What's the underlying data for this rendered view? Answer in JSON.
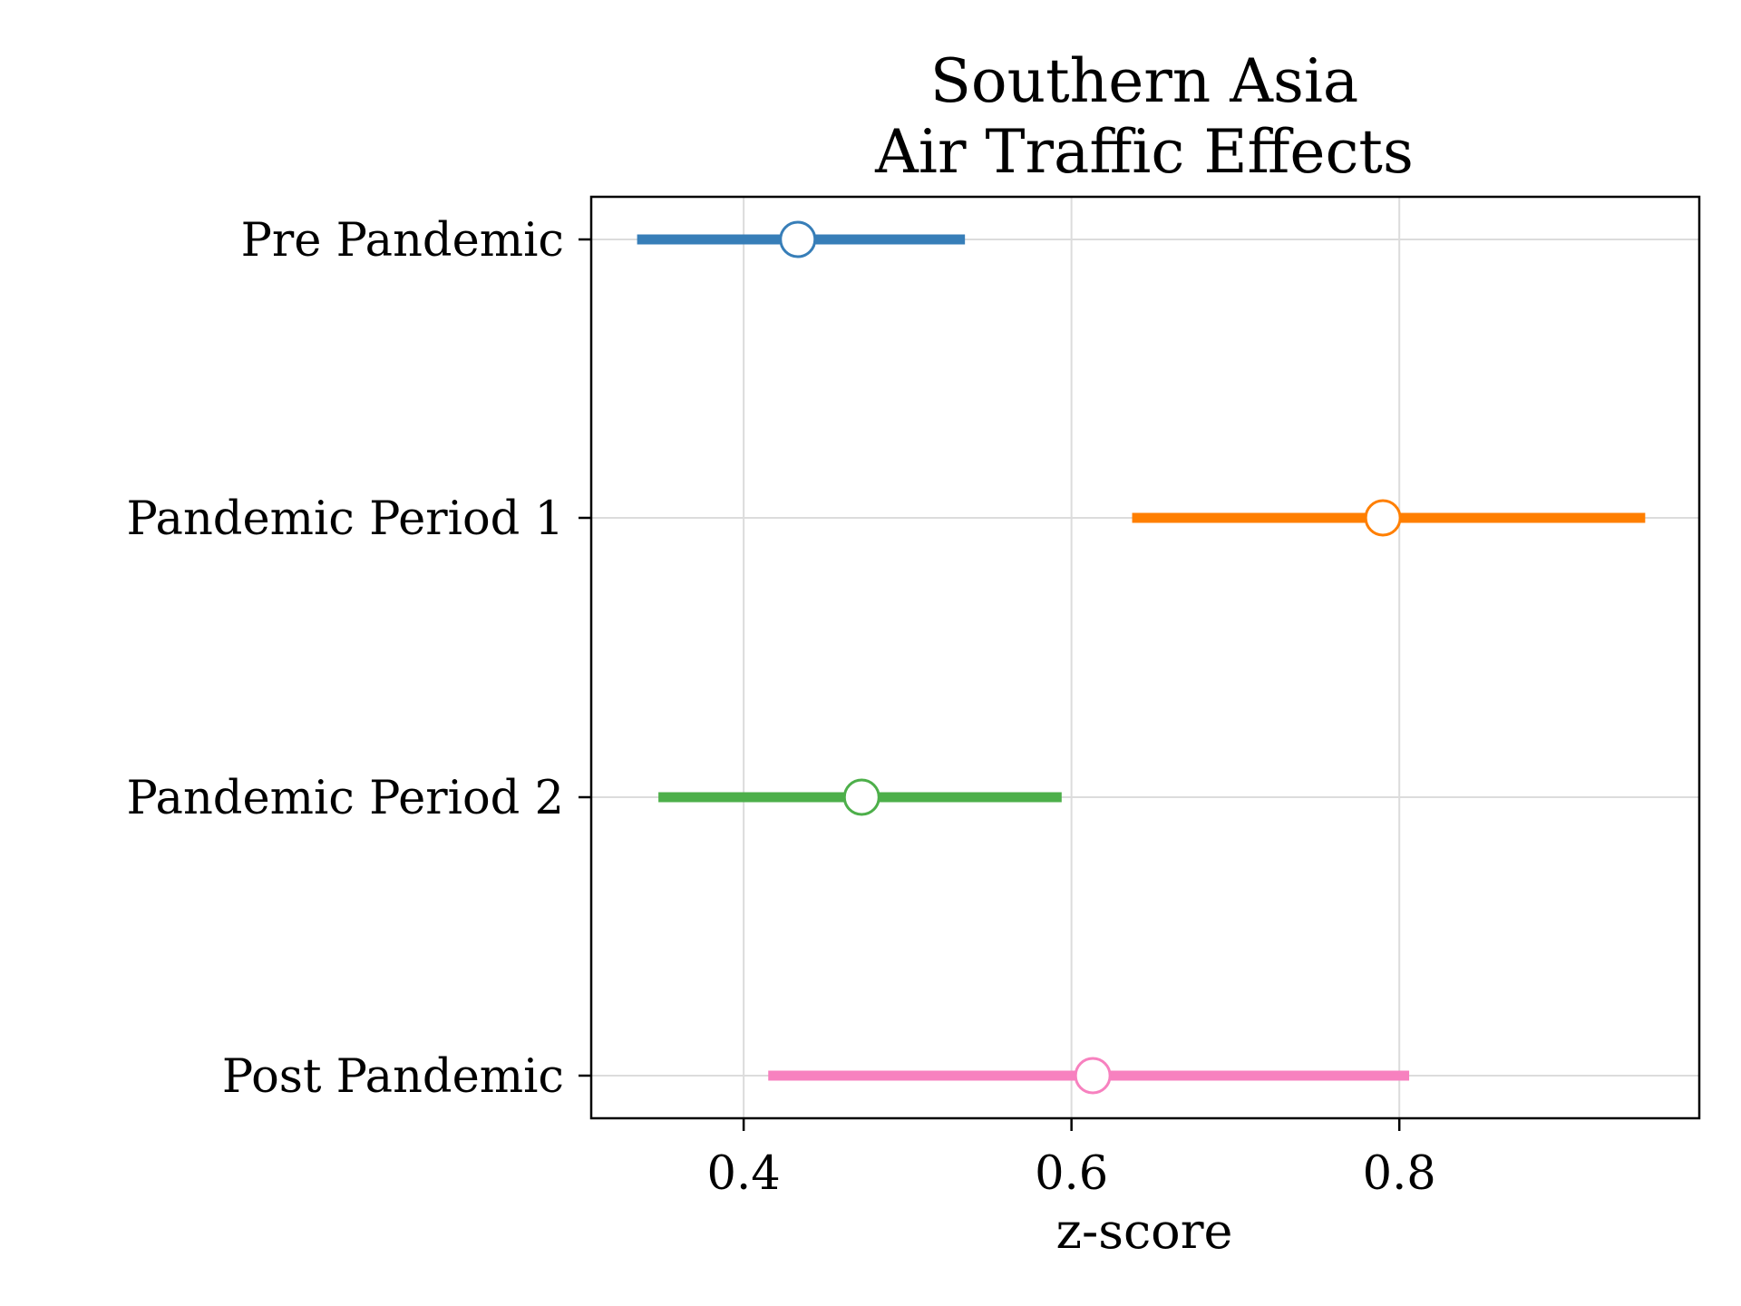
{
  "chart_data": {
    "type": "scatter",
    "subtype": "forest-plot-point-interval",
    "title_lines": [
      "Southern Asia",
      "Air Traffic Effects"
    ],
    "xlabel": "z-score",
    "ylabel": "",
    "xlim": [
      0.307,
      0.983
    ],
    "xticks": [
      0.4,
      0.6,
      0.8
    ],
    "xtick_labels": [
      "0.4",
      "0.6",
      "0.8"
    ],
    "grid": true,
    "legend": "none",
    "series": [
      {
        "category": "Pre Pandemic",
        "estimate": 0.433,
        "low": 0.335,
        "high": 0.535,
        "color": "#377eb8"
      },
      {
        "category": "Pandemic Period 1",
        "estimate": 0.79,
        "low": 0.637,
        "high": 0.95,
        "color": "#ff7f00"
      },
      {
        "category": "Pandemic Period 2",
        "estimate": 0.472,
        "low": 0.348,
        "high": 0.594,
        "color": "#4daf4a"
      },
      {
        "category": "Post Pandemic",
        "estimate": 0.613,
        "low": 0.415,
        "high": 0.806,
        "color": "#f781bf"
      }
    ]
  }
}
